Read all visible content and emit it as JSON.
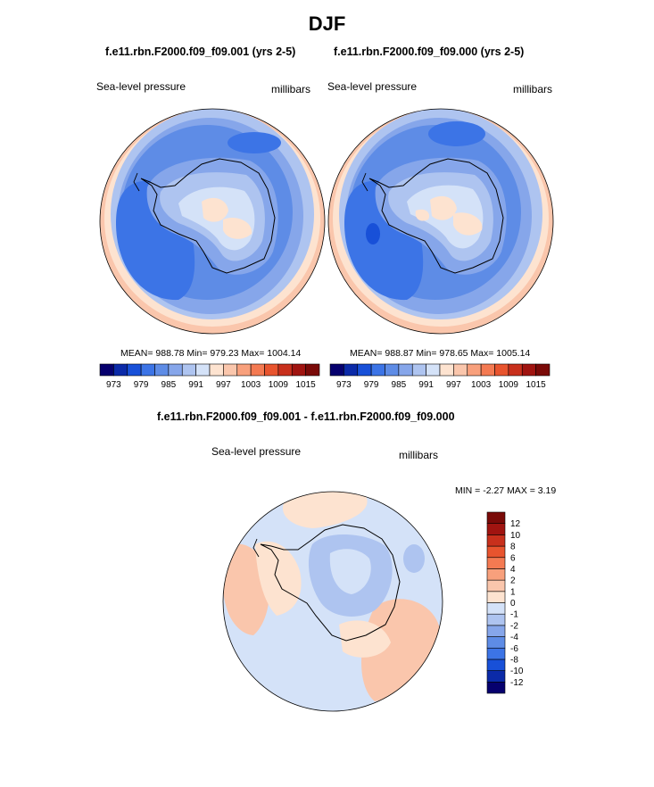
{
  "figure": {
    "title": "DJF",
    "top_left_title": "f.e11.rbn.F2000.f09_f09.001 (yrs 2-5)",
    "top_right_title": "f.e11.rbn.F2000.f09_f09.000 (yrs 2-5)",
    "diff_title": "f.e11.rbn.F2000.f09_f09.001 - f.e11.rbn.F2000.f09_f09.000"
  },
  "chart_data": [
    {
      "type": "heatmap",
      "name": "map-case-001",
      "variable_label": "Sea-level pressure",
      "units_label": "millibars",
      "stats_text": "MEAN= 988.78  Min= 979.23  Max= 1004.14",
      "stats": {
        "mean": 988.78,
        "min": 979.23,
        "max": 1004.14
      },
      "colorbar": {
        "orientation": "horizontal",
        "levels": [
          973,
          976,
          979,
          982,
          985,
          988,
          991,
          994,
          997,
          1000,
          1003,
          1006,
          1009,
          1012,
          1015
        ],
        "tick_labels": [
          "973",
          "979",
          "985",
          "991",
          "997",
          "1003",
          "1009",
          "1015"
        ],
        "colors": [
          "#06006e",
          "#0b2aa8",
          "#1850d8",
          "#3c74e6",
          "#5e8ce6",
          "#86a6ea",
          "#aec4f0",
          "#d4e2f8",
          "#fde3d0",
          "#fac6ac",
          "#f8a07c",
          "#f47a52",
          "#e8542e",
          "#c8301c",
          "#a01410",
          "#7a0a08"
        ]
      }
    },
    {
      "type": "heatmap",
      "name": "map-case-000",
      "variable_label": "Sea-level pressure",
      "units_label": "millibars",
      "stats_text": "MEAN= 988.87  Min= 978.65  Max= 1005.14",
      "stats": {
        "mean": 988.87,
        "min": 978.65,
        "max": 1005.14
      },
      "colorbar": {
        "orientation": "horizontal",
        "levels": [
          973,
          976,
          979,
          982,
          985,
          988,
          991,
          994,
          997,
          1000,
          1003,
          1006,
          1009,
          1012,
          1015
        ],
        "tick_labels": [
          "973",
          "979",
          "985",
          "991",
          "997",
          "1003",
          "1009",
          "1015"
        ],
        "colors": [
          "#06006e",
          "#0b2aa8",
          "#1850d8",
          "#3c74e6",
          "#5e8ce6",
          "#86a6ea",
          "#aec4f0",
          "#d4e2f8",
          "#fde3d0",
          "#fac6ac",
          "#f8a07c",
          "#f47a52",
          "#e8542e",
          "#c8301c",
          "#a01410",
          "#7a0a08"
        ]
      }
    },
    {
      "type": "heatmap",
      "name": "map-difference",
      "variable_label": "Sea-level pressure",
      "units_label": "millibars",
      "stats_text": "MIN =  -2.27 MAX =   3.19",
      "stats": {
        "min": -2.27,
        "max": 3.19
      },
      "colorbar": {
        "orientation": "vertical",
        "levels": [
          -12,
          -10,
          -8,
          -6,
          -4,
          -2,
          -1,
          0,
          1,
          2,
          4,
          6,
          8,
          10,
          12
        ],
        "tick_labels": [
          "-12",
          "-10",
          "-8",
          "-6",
          "-4",
          "-2",
          "-1",
          "0",
          "1",
          "2",
          "4",
          "6",
          "8",
          "10",
          "12"
        ],
        "colors": [
          "#06006e",
          "#0b2aa8",
          "#1850d8",
          "#3c74e6",
          "#5e8ce6",
          "#86a6ea",
          "#aec4f0",
          "#d4e2f8",
          "#fde3d0",
          "#fac6ac",
          "#f8a07c",
          "#f47a52",
          "#e8542e",
          "#c8301c",
          "#a01410",
          "#7a0a08"
        ]
      }
    }
  ]
}
